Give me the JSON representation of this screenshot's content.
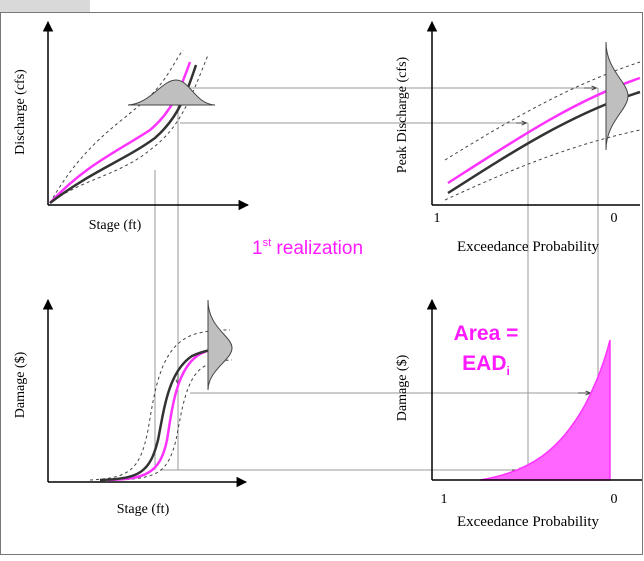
{
  "panels": {
    "top_left": {
      "ylabel": "Discharge (cfs)",
      "xlabel": "Stage (ft)"
    },
    "top_right": {
      "ylabel": "Peak Discharge (cfs)",
      "xlabel": "Exceedance Probability",
      "tick_left": "1",
      "tick_right": "0"
    },
    "bottom_left": {
      "ylabel": "Damage ($)",
      "xlabel": "Stage (ft)"
    },
    "bottom_right": {
      "ylabel": "Damage ($)",
      "xlabel": "Exceedance Probability",
      "tick_left": "1",
      "tick_right": "0"
    }
  },
  "annotations": {
    "realization_ordinal": "1",
    "realization_suffix": "st",
    "realization_text": " realization",
    "area_line1": "Area =",
    "area_line2": "EAD",
    "area_subscript": "i"
  },
  "colors": {
    "realization": "#ff33ff",
    "fill": "#ff66ff",
    "median": "#333333",
    "bounds": "#555555",
    "distribution": "#bfbfbf"
  }
}
